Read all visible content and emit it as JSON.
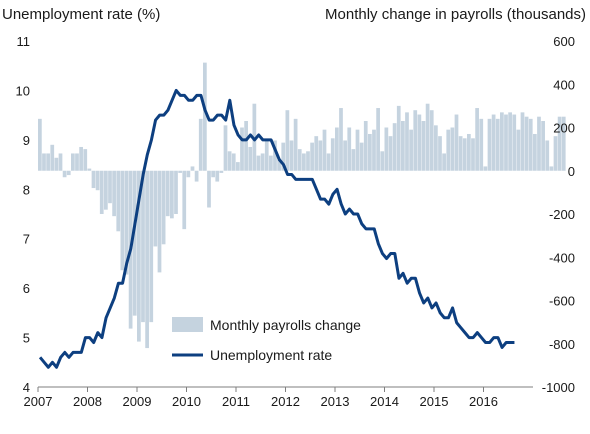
{
  "header": {
    "left_title": "Unemployment rate (%)",
    "right_title": "Monthly change in payrolls (thousands)"
  },
  "chart_data": {
    "type": "bar+line",
    "title": "",
    "xlabel": "",
    "x_ticks": [
      "2007",
      "2008",
      "2009",
      "2010",
      "2011",
      "2012",
      "2013",
      "2014",
      "2015",
      "2016"
    ],
    "y_left": {
      "label": "Unemployment rate (%)",
      "ylim": [
        4,
        11
      ],
      "ticks": [
        4,
        5,
        6,
        7,
        8,
        9,
        10,
        11
      ]
    },
    "y_right": {
      "label": "Monthly change in payrolls (thousands)",
      "ylim": [
        -1000,
        600
      ],
      "ticks": [
        -1000,
        -800,
        -600,
        -400,
        -200,
        0,
        200,
        400,
        600
      ]
    },
    "grid": false,
    "legend_position": "bottom-center",
    "colors": {
      "bars": "#c5d3df",
      "line": "#0d3f80"
    },
    "series": [
      {
        "name": "Monthly payrolls change",
        "type": "bar",
        "axis": "right",
        "start": "2007-01",
        "values": [
          240,
          80,
          80,
          120,
          60,
          80,
          -30,
          -20,
          80,
          80,
          110,
          100,
          10,
          -80,
          -90,
          -200,
          -180,
          -150,
          -210,
          -280,
          -460,
          -480,
          -730,
          -670,
          -790,
          -700,
          -820,
          -700,
          -350,
          -470,
          -340,
          -210,
          -220,
          -200,
          -10,
          -270,
          -30,
          20,
          -50,
          240,
          500,
          -170,
          -30,
          -50,
          -10,
          210,
          90,
          80,
          40,
          200,
          230,
          110,
          310,
          70,
          80,
          140,
          70,
          140,
          50,
          130,
          280,
          140,
          240,
          100,
          80,
          90,
          130,
          160,
          140,
          190,
          80,
          150,
          200,
          290,
          140,
          200,
          100,
          190,
          130,
          230,
          170,
          190,
          290,
          90,
          200,
          160,
          220,
          300,
          230,
          270,
          190,
          280,
          260,
          230,
          310,
          280,
          210,
          160,
          80,
          190,
          200,
          260,
          160,
          150,
          170,
          150,
          290,
          240,
          20,
          240,
          260,
          240,
          270,
          260,
          270,
          260,
          190,
          270,
          250,
          240,
          170,
          250,
          230,
          140,
          20,
          160,
          250,
          250
        ]
      },
      {
        "name": "Unemployment rate",
        "type": "line",
        "axis": "left",
        "start": "2007-01",
        "values": [
          4.6,
          4.5,
          4.4,
          4.5,
          4.4,
          4.6,
          4.7,
          4.6,
          4.7,
          4.7,
          4.7,
          5.0,
          5.0,
          4.9,
          5.1,
          5.0,
          5.4,
          5.6,
          5.8,
          6.1,
          6.1,
          6.5,
          6.8,
          7.3,
          7.8,
          8.3,
          8.7,
          9.0,
          9.4,
          9.5,
          9.5,
          9.6,
          9.8,
          10.0,
          9.9,
          9.9,
          9.8,
          9.8,
          9.9,
          9.9,
          9.6,
          9.4,
          9.4,
          9.5,
          9.5,
          9.4,
          9.8,
          9.3,
          9.1,
          9.0,
          9.0,
          9.1,
          9.0,
          9.1,
          9.0,
          9.0,
          9.0,
          8.8,
          8.6,
          8.5,
          8.3,
          8.3,
          8.2,
          8.2,
          8.2,
          8.2,
          8.2,
          8.0,
          7.8,
          7.8,
          7.7,
          7.9,
          8.0,
          7.7,
          7.5,
          7.6,
          7.5,
          7.5,
          7.3,
          7.2,
          7.2,
          7.2,
          6.9,
          6.7,
          6.6,
          6.7,
          6.7,
          6.2,
          6.3,
          6.1,
          6.2,
          6.2,
          5.9,
          5.7,
          5.8,
          5.6,
          5.7,
          5.5,
          5.4,
          5.4,
          5.6,
          5.3,
          5.2,
          5.1,
          5.0,
          5.0,
          5.1,
          5.0,
          4.9,
          4.9,
          5.0,
          5.0,
          4.8,
          4.9,
          4.9,
          4.9
        ]
      }
    ]
  }
}
